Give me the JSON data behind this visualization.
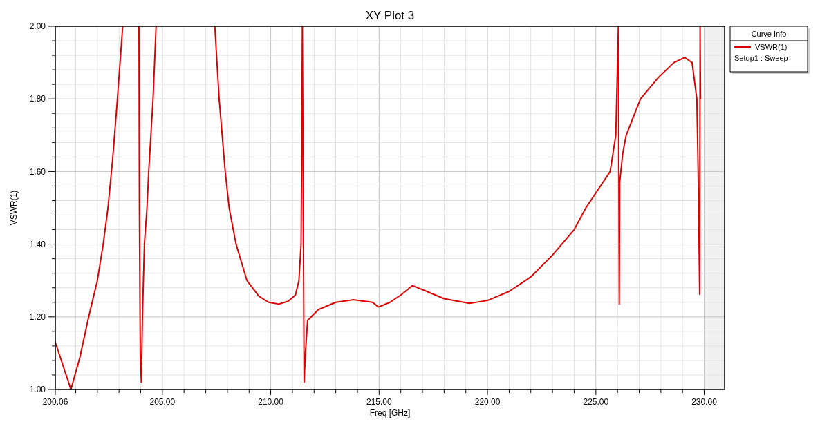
{
  "chart_data": {
    "type": "line",
    "title": "XY Plot 3",
    "xlabel": "Freq [GHz]",
    "ylabel": "VSWR(1)",
    "legend_title": "Curve Info",
    "legend": "top right",
    "grid": true,
    "marker": "none",
    "line_style": "solid",
    "annotations": [
      "Setup1 : Sweep"
    ],
    "xlim": [
      200.06,
      230.94
    ],
    "xticks": [
      {
        "value": 200.06,
        "label": "200.06"
      },
      {
        "value": 201,
        "label": null
      },
      {
        "value": 202,
        "label": null
      },
      {
        "value": 203,
        "label": null
      },
      {
        "value": 204,
        "label": null
      },
      {
        "value": 205,
        "label": "205.00"
      },
      {
        "value": 206,
        "label": null
      },
      {
        "value": 207,
        "label": null
      },
      {
        "value": 208,
        "label": null
      },
      {
        "value": 209,
        "label": null
      },
      {
        "value": 210,
        "label": "210.00"
      },
      {
        "value": 211,
        "label": null
      },
      {
        "value": 212,
        "label": null
      },
      {
        "value": 213,
        "label": null
      },
      {
        "value": 214,
        "label": null
      },
      {
        "value": 215,
        "label": "215.00"
      },
      {
        "value": 216,
        "label": null
      },
      {
        "value": 217,
        "label": null
      },
      {
        "value": 218,
        "label": null
      },
      {
        "value": 219,
        "label": null
      },
      {
        "value": 220,
        "label": "220.00"
      },
      {
        "value": 221,
        "label": null
      },
      {
        "value": 222,
        "label": null
      },
      {
        "value": 223,
        "label": null
      },
      {
        "value": 224,
        "label": null
      },
      {
        "value": 225,
        "label": "225.00"
      },
      {
        "value": 226,
        "label": null
      },
      {
        "value": 227,
        "label": null
      },
      {
        "value": 228,
        "label": null
      },
      {
        "value": 229,
        "label": null
      },
      {
        "value": 230,
        "label": "230.00"
      }
    ],
    "ylim": [
      1.0,
      2.0
    ],
    "yticks": [
      {
        "value": 1.0,
        "label": "1.00"
      },
      {
        "value": 1.04,
        "label": null
      },
      {
        "value": 1.08,
        "label": null
      },
      {
        "value": 1.12,
        "label": null
      },
      {
        "value": 1.16,
        "label": null
      },
      {
        "value": 1.2,
        "label": "1.20"
      },
      {
        "value": 1.24,
        "label": null
      },
      {
        "value": 1.28,
        "label": null
      },
      {
        "value": 1.32,
        "label": null
      },
      {
        "value": 1.36,
        "label": null
      },
      {
        "value": 1.4,
        "label": "1.40"
      },
      {
        "value": 1.44,
        "label": null
      },
      {
        "value": 1.48,
        "label": null
      },
      {
        "value": 1.52,
        "label": null
      },
      {
        "value": 1.56,
        "label": null
      },
      {
        "value": 1.6,
        "label": "1.60"
      },
      {
        "value": 1.64,
        "label": null
      },
      {
        "value": 1.68,
        "label": null
      },
      {
        "value": 1.72,
        "label": null
      },
      {
        "value": 1.76,
        "label": null
      },
      {
        "value": 1.8,
        "label": "1.80"
      },
      {
        "value": 1.84,
        "label": null
      },
      {
        "value": 1.88,
        "label": null
      },
      {
        "value": 1.92,
        "label": null
      },
      {
        "value": 1.96,
        "label": null
      },
      {
        "value": 2.0,
        "label": "2.00"
      }
    ],
    "bands": [
      {
        "axis": "x",
        "from": 230,
        "to": 230.94,
        "color": "#f0f0f0"
      }
    ],
    "series": [
      {
        "name": "VSWR(1)",
        "color": "#dd0000",
        "x": [
          200.06,
          200.78,
          201.2,
          201.6,
          202.0,
          202.27,
          202.49,
          202.7,
          202.9,
          203.17,
          203.5,
          203.92,
          203.94,
          203.98,
          204.03,
          204.08,
          204.17,
          204.29,
          204.37,
          204.57,
          204.71,
          206.0,
          207.42,
          207.62,
          207.9,
          208.08,
          208.4,
          208.9,
          209.45,
          209.9,
          210.37,
          210.8,
          211.14,
          211.3,
          211.4,
          211.46,
          211.54,
          211.6,
          211.7,
          212.2,
          213.0,
          213.8,
          214.7,
          214.97,
          215.5,
          216.0,
          216.54,
          217.2,
          218.0,
          219.17,
          220.0,
          221.0,
          222.0,
          223.0,
          224.0,
          224.54,
          225.1,
          225.66,
          225.92,
          226.04,
          226.08,
          226.1,
          226.24,
          226.4,
          227.06,
          227.9,
          228.6,
          229.1,
          229.44,
          229.66,
          229.72,
          229.79,
          229.81,
          229.83
        ],
        "values": [
          1.13,
          1.0,
          1.09,
          1.2,
          1.3,
          1.4,
          1.5,
          1.63,
          1.78,
          2.0,
          null,
          2.0,
          1.5,
          1.1,
          1.02,
          1.2,
          1.4,
          1.5,
          1.6,
          1.8,
          2.0,
          null,
          2.0,
          1.8,
          1.6,
          1.5,
          1.4,
          1.3,
          1.257,
          1.24,
          1.235,
          1.243,
          1.26,
          1.3,
          1.4,
          2.0,
          1.02,
          1.1,
          1.19,
          1.22,
          1.24,
          1.247,
          1.24,
          1.227,
          1.24,
          1.26,
          1.286,
          1.27,
          1.25,
          1.237,
          1.245,
          1.27,
          1.31,
          1.37,
          1.44,
          1.5,
          1.55,
          1.6,
          1.7,
          2.0,
          1.235,
          1.57,
          1.65,
          1.7,
          1.8,
          1.86,
          1.9,
          1.914,
          1.9,
          1.8,
          1.6,
          1.262,
          2.0,
          1.8
        ]
      }
    ]
  }
}
